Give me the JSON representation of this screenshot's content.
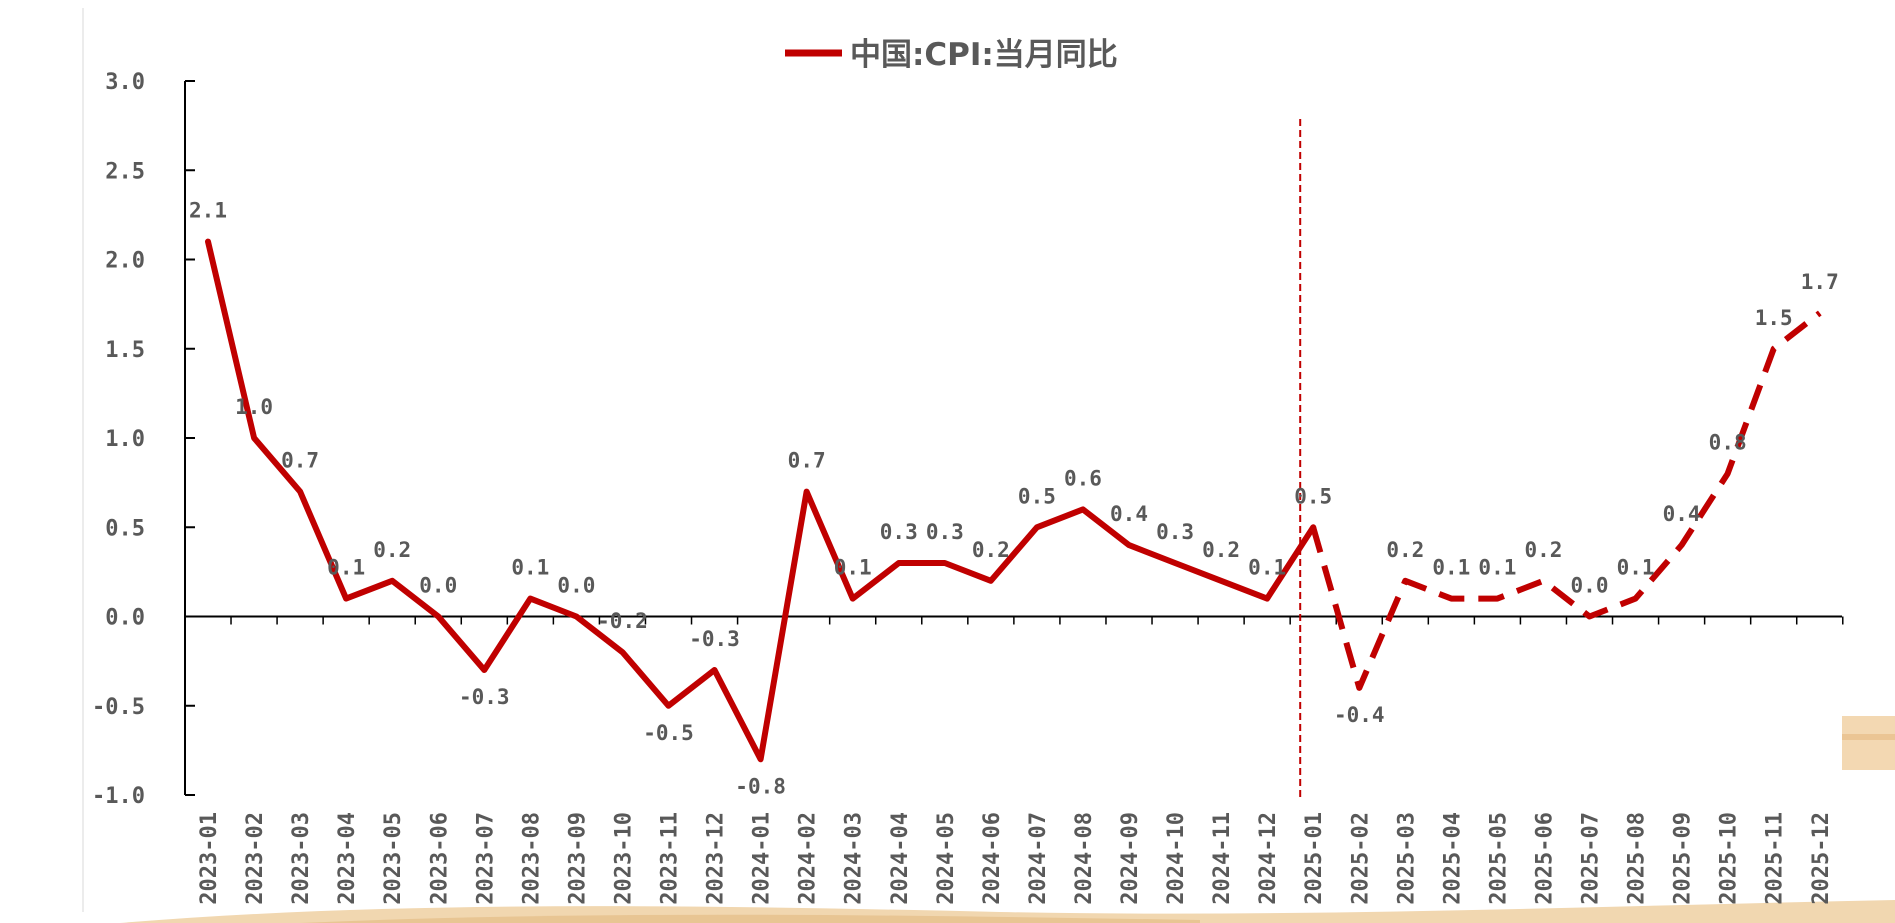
{
  "chart_data": {
    "type": "line",
    "title": "",
    "xlabel": "",
    "ylabel": "",
    "ylim": [
      -1.0,
      3.0
    ],
    "yticks": [
      "3.0",
      "2.5",
      "2.0",
      "1.5",
      "1.0",
      "0.5",
      "0.0",
      "-0.5",
      "-1.0"
    ],
    "grid": false,
    "legend_position": "top-center",
    "categories": [
      "2023-01",
      "2023-02",
      "2023-03",
      "2023-04",
      "2023-05",
      "2023-06",
      "2023-07",
      "2023-08",
      "2023-09",
      "2023-10",
      "2023-11",
      "2023-12",
      "2024-01",
      "2024-02",
      "2024-03",
      "2024-04",
      "2024-05",
      "2024-06",
      "2024-07",
      "2024-08",
      "2024-09",
      "2024-10",
      "2024-11",
      "2024-12",
      "2025-01",
      "2025-02",
      "2025-03",
      "2025-04",
      "2025-05",
      "2025-06",
      "2025-07",
      "2025-08",
      "2025-09",
      "2025-10",
      "2025-11",
      "2025-12"
    ],
    "series": [
      {
        "name": "中国:CPI:当月同比",
        "color": "#C00000",
        "values": [
          2.1,
          1.0,
          0.7,
          0.1,
          0.2,
          0.0,
          -0.3,
          0.1,
          0.0,
          -0.2,
          -0.5,
          -0.3,
          -0.8,
          0.7,
          0.1,
          0.3,
          0.3,
          0.2,
          0.5,
          0.6,
          0.4,
          0.3,
          0.2,
          0.1,
          0.5,
          -0.4,
          0.2,
          0.1,
          0.1,
          0.2,
          0.0,
          0.1,
          0.4,
          0.8,
          1.5,
          1.7
        ],
        "data_labels": [
          "2.1",
          "1.0",
          "0.7",
          "0.1",
          "0.2",
          "0.0",
          "-0.3",
          "0.1",
          "0.0",
          "-0.2",
          "-0.5",
          "-0.3",
          "-0.8",
          "0.7",
          "0.1",
          "0.3",
          "0.3",
          "0.2",
          "0.5",
          "0.6",
          "0.4",
          "0.3",
          "0.2",
          "0.1",
          "0.5",
          "-0.4",
          "0.2",
          "0.1",
          "0.1",
          "0.2",
          "0.0",
          "0.1",
          "0.4",
          "0.8",
          "1.5",
          "1.7"
        ],
        "actual_through": "2025-01",
        "forecast_from": "2025-01",
        "forecast_style": "dashed"
      }
    ],
    "divider_at": "2025-01",
    "divider_color": "#C00000",
    "axis_color": "#000000",
    "text_color": "#595959"
  }
}
